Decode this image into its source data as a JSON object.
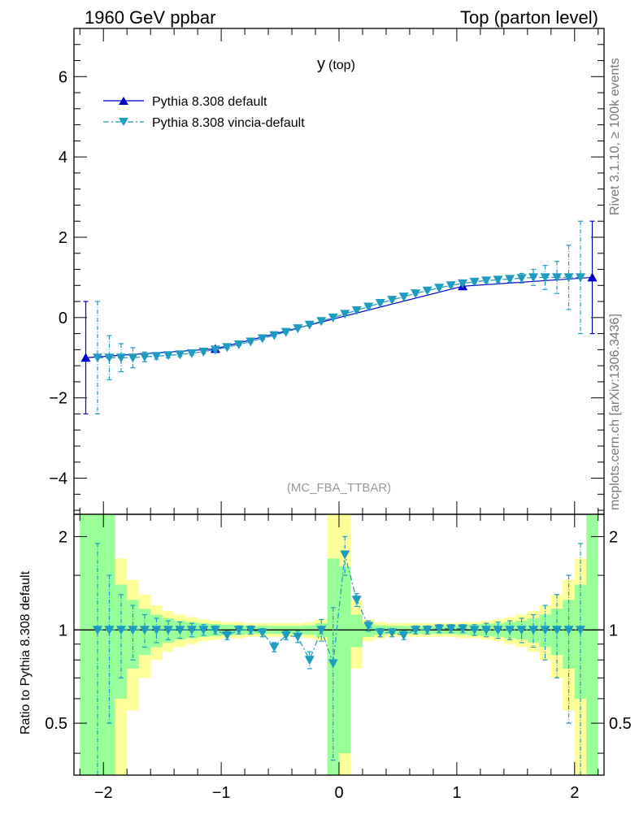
{
  "header": {
    "left": "1960 GeV ppbar",
    "right": "Top (parton level)"
  },
  "side_labels": {
    "rivet": "Rivet 3.1.10, ≥ 100k events",
    "mcplots": "mcplots.cern.ch [arXiv:1306.3436]"
  },
  "chart_data": [
    {
      "type": "line",
      "panel": "main",
      "title": "y",
      "title_sub": "(top)",
      "watermark": "(MC_FBA_TTBAR)",
      "xlim": [
        -2.25,
        2.25
      ],
      "ylim": [
        -4.9,
        7.2
      ],
      "yticks": [
        -4,
        -2,
        0,
        2,
        4,
        6
      ],
      "ytick_labels": [
        "−4",
        "−2",
        "0",
        "2",
        "4",
        "6"
      ],
      "xticks": [
        -2,
        -1,
        0,
        1,
        2
      ],
      "xtick_labels": [
        "−2",
        "−1",
        "0",
        "1",
        "2"
      ],
      "legend_position": "top-left",
      "series": [
        {
          "name": "Pythia 8.308 default",
          "color": "#0000cc",
          "marker": "triangle-up",
          "linestyle": "solid",
          "x": [
            -2.15,
            -1.05,
            1.05,
            2.15
          ],
          "y": [
            -1.0,
            -0.78,
            0.78,
            1.0
          ],
          "err": [
            1.4,
            0.05,
            0.05,
            1.4
          ]
        },
        {
          "name": "Pythia 8.308 vincia-default",
          "color": "#1e9bc0",
          "marker": "triangle-down",
          "linestyle": "dashdot",
          "x": [
            -2.05,
            -1.95,
            -1.85,
            -1.75,
            -1.65,
            -1.55,
            -1.45,
            -1.35,
            -1.25,
            -1.15,
            -1.05,
            -0.95,
            -0.85,
            -0.75,
            -0.65,
            -0.55,
            -0.45,
            -0.35,
            -0.25,
            -0.15,
            -0.05,
            0.05,
            0.15,
            0.25,
            0.35,
            0.45,
            0.55,
            0.65,
            0.75,
            0.85,
            0.95,
            1.05,
            1.15,
            1.25,
            1.35,
            1.45,
            1.55,
            1.65,
            1.75,
            1.85,
            1.95,
            2.05
          ],
          "y": [
            -1.0,
            -1.0,
            -1.0,
            -1.0,
            -0.98,
            -0.96,
            -0.94,
            -0.92,
            -0.89,
            -0.85,
            -0.8,
            -0.74,
            -0.67,
            -0.6,
            -0.52,
            -0.44,
            -0.36,
            -0.27,
            -0.18,
            -0.09,
            0.0,
            0.09,
            0.18,
            0.27,
            0.36,
            0.44,
            0.52,
            0.6,
            0.67,
            0.74,
            0.8,
            0.85,
            0.89,
            0.92,
            0.94,
            0.96,
            0.98,
            1.0,
            1.0,
            1.0,
            1.0,
            1.0
          ],
          "err": [
            1.4,
            0.55,
            0.35,
            0.25,
            0.12,
            0.08,
            0.06,
            0.05,
            0.04,
            0.04,
            0.04,
            0.03,
            0.03,
            0.03,
            0.03,
            0.03,
            0.03,
            0.03,
            0.03,
            0.03,
            0.03,
            0.03,
            0.03,
            0.03,
            0.03,
            0.03,
            0.03,
            0.03,
            0.03,
            0.03,
            0.04,
            0.04,
            0.04,
            0.05,
            0.06,
            0.08,
            0.12,
            0.2,
            0.3,
            0.4,
            0.8,
            1.4
          ]
        }
      ]
    },
    {
      "type": "line",
      "panel": "ratio",
      "ylabel": "Ratio to Pythia 8.308 default",
      "ylim": [
        0.34,
        2.36
      ],
      "yticks": [
        0.5,
        1,
        2
      ],
      "ytick_labels": [
        "0.5",
        "1",
        "2"
      ],
      "log_scale": true,
      "xlim": [
        -2.25,
        2.25
      ],
      "bands": {
        "x_edges": [
          -2.2,
          -2.1,
          -2.0,
          -1.9,
          -1.8,
          -1.7,
          -1.6,
          -1.5,
          -1.4,
          -1.3,
          -1.2,
          -1.1,
          -1.0,
          -0.9,
          -0.8,
          -0.7,
          -0.6,
          -0.5,
          -0.4,
          -0.3,
          -0.2,
          -0.1,
          0.0,
          0.1,
          0.2,
          0.3,
          0.4,
          0.5,
          0.6,
          0.7,
          0.8,
          0.9,
          1.0,
          1.1,
          1.2,
          1.3,
          1.4,
          1.5,
          1.6,
          1.7,
          1.8,
          1.9,
          2.0,
          2.1,
          2.2
        ],
        "yellow_half_width": [
          3.0,
          3.0,
          3.0,
          0.7,
          0.45,
          0.3,
          0.2,
          0.15,
          0.12,
          0.1,
          0.08,
          0.07,
          0.06,
          0.06,
          0.05,
          0.05,
          0.05,
          0.05,
          0.05,
          0.06,
          0.08,
          3.0,
          3.0,
          0.25,
          0.08,
          0.06,
          0.05,
          0.05,
          0.05,
          0.05,
          0.05,
          0.05,
          0.06,
          0.06,
          0.07,
          0.08,
          0.1,
          0.12,
          0.15,
          0.2,
          0.3,
          0.45,
          0.7,
          3.0
        ],
        "green_half_width": [
          3.0,
          3.0,
          3.0,
          0.4,
          0.25,
          0.17,
          0.12,
          0.09,
          0.07,
          0.06,
          0.05,
          0.045,
          0.04,
          0.035,
          0.03,
          0.03,
          0.03,
          0.03,
          0.03,
          0.035,
          0.05,
          0.7,
          0.6,
          0.12,
          0.05,
          0.035,
          0.03,
          0.03,
          0.03,
          0.03,
          0.03,
          0.03,
          0.035,
          0.04,
          0.045,
          0.05,
          0.06,
          0.07,
          0.09,
          0.12,
          0.17,
          0.25,
          0.4,
          3.0
        ]
      },
      "series": [
        {
          "name": "Pythia 8.308 default",
          "color": "#0000cc",
          "x": [
            -2.25,
            2.25
          ],
          "y": [
            1.0,
            1.0
          ]
        },
        {
          "name": "Pythia 8.308 vincia-default",
          "color": "#1e9bc0",
          "marker": "triangle-down",
          "linestyle": "dashdot",
          "x": [
            -2.05,
            -1.95,
            -1.85,
            -1.75,
            -1.65,
            -1.55,
            -1.45,
            -1.35,
            -1.25,
            -1.15,
            -1.05,
            -0.95,
            -0.85,
            -0.75,
            -0.65,
            -0.55,
            -0.45,
            -0.35,
            -0.25,
            -0.15,
            -0.05,
            0.05,
            0.15,
            0.25,
            0.35,
            0.45,
            0.55,
            0.65,
            0.75,
            0.85,
            0.95,
            1.05,
            1.15,
            1.25,
            1.35,
            1.45,
            1.55,
            1.65,
            1.75,
            1.85,
            1.95,
            2.05
          ],
          "y": [
            1.0,
            1.0,
            1.0,
            1.0,
            1.0,
            1.0,
            1.0,
            1.0,
            1.0,
            1.0,
            1.0,
            0.96,
            1.0,
            1.0,
            0.98,
            0.88,
            0.96,
            0.95,
            0.8,
            1.0,
            0.78,
            1.75,
            1.25,
            1.03,
            0.98,
            0.98,
            0.96,
            1.0,
            1.0,
            1.01,
            1.01,
            1.01,
            1.0,
            1.0,
            1.0,
            1.0,
            1.0,
            1.0,
            1.0,
            1.0,
            1.0,
            1.0
          ],
          "err": [
            0.9,
            0.5,
            0.3,
            0.2,
            0.12,
            0.09,
            0.07,
            0.06,
            0.05,
            0.04,
            0.03,
            0.03,
            0.03,
            0.03,
            0.03,
            0.03,
            0.03,
            0.04,
            0.05,
            0.08,
            0.4,
            0.25,
            0.06,
            0.04,
            0.03,
            0.03,
            0.03,
            0.03,
            0.03,
            0.03,
            0.03,
            0.03,
            0.04,
            0.05,
            0.06,
            0.07,
            0.09,
            0.12,
            0.2,
            0.3,
            0.5,
            0.9
          ]
        }
      ]
    }
  ]
}
